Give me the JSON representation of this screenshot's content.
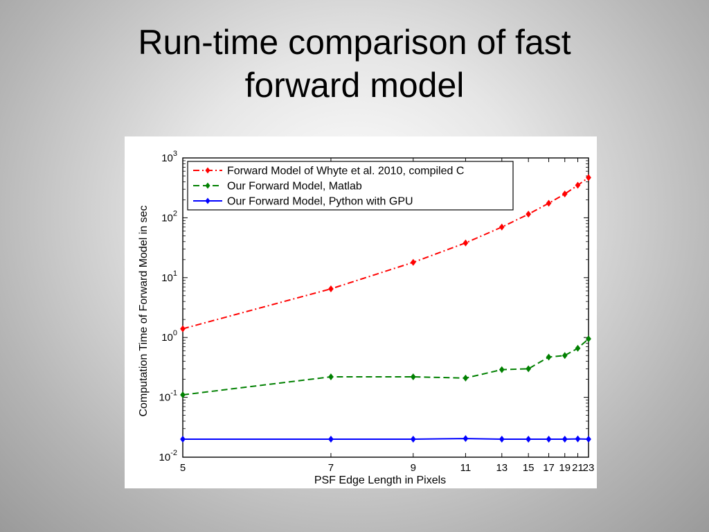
{
  "slide": {
    "title_line1": "Run-time comparison of fast",
    "title_line2": "forward model"
  },
  "chart_data": {
    "type": "line",
    "xlabel": "PSF Edge Length in Pixels",
    "ylabel": "Computation Time of Forward Model in sec",
    "x": [
      5,
      7,
      9,
      11,
      13,
      15,
      17,
      19,
      21,
      23
    ],
    "x_ticks": [
      5,
      7,
      9,
      11,
      13,
      15,
      17,
      19,
      21,
      23
    ],
    "xlim": [
      5,
      23
    ],
    "x_scale": "reciprocal",
    "y_scale": "log",
    "ylim": [
      0.01,
      1000
    ],
    "y_ticks": [
      {
        "base": "10",
        "exp": "-2",
        "value": 0.01
      },
      {
        "base": "10",
        "exp": "-1",
        "value": 0.1
      },
      {
        "base": "10",
        "exp": "0",
        "value": 1
      },
      {
        "base": "10",
        "exp": "1",
        "value": 10
      },
      {
        "base": "10",
        "exp": "2",
        "value": 100
      },
      {
        "base": "10",
        "exp": "3",
        "value": 1000
      }
    ],
    "grid": false,
    "legend_position": "top-left",
    "series": [
      {
        "name": "Forward Model of Whyte et al. 2010, compiled C",
        "color": "#ff0000",
        "style": "dash-dot",
        "values": [
          1.4,
          6.5,
          18,
          38,
          70,
          115,
          175,
          250,
          350,
          470
        ]
      },
      {
        "name": "Our Forward Model, Matlab",
        "color": "#008000",
        "style": "dashed",
        "values": [
          0.11,
          0.22,
          0.22,
          0.21,
          0.29,
          0.3,
          0.47,
          0.5,
          0.66,
          0.95
        ]
      },
      {
        "name": "Our Forward Model, Python with GPU",
        "color": "#0000ff",
        "style": "solid",
        "values": [
          0.02,
          0.02,
          0.02,
          0.0205,
          0.02,
          0.02,
          0.02,
          0.02,
          0.0202,
          0.02
        ]
      }
    ]
  }
}
